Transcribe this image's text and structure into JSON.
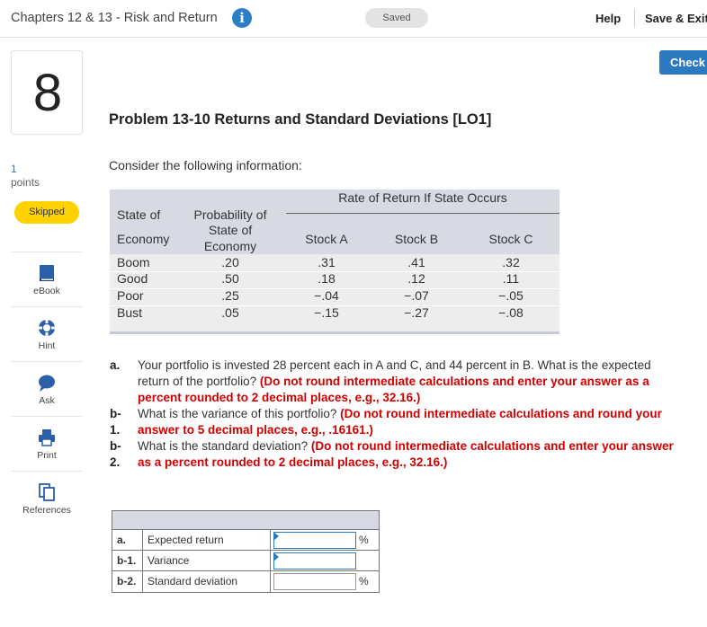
{
  "header": {
    "title": "Chapters 12 & 13 - Risk and Return",
    "info_icon": "i",
    "status": "Saved",
    "help_label": "Help",
    "save_exit_label": "Save & Exit",
    "check_label": "Check"
  },
  "question": {
    "number": "8",
    "points_value": "1",
    "points_label": "points",
    "status_badge": "Skipped"
  },
  "tools": [
    {
      "label": "eBook",
      "icon": "book-icon"
    },
    {
      "label": "Hint",
      "icon": "hint-icon"
    },
    {
      "label": "Ask",
      "icon": "chat-bubble-icon"
    },
    {
      "label": "Print",
      "icon": "printer-icon"
    },
    {
      "label": "References",
      "icon": "copy-icon"
    }
  ],
  "problem": {
    "title": "Problem 13-10 Returns and Standard Deviations [LO1]",
    "intro": "Consider the following information:"
  },
  "data_table": {
    "group_header": "Rate of Return If State Occurs",
    "col_state_line1": "State of",
    "col_state_line2": "Economy",
    "col_prob_line1": "Probability of",
    "col_prob_line2": "State of",
    "col_prob_line3": "Economy",
    "col_a": "Stock A",
    "col_b": "Stock B",
    "col_c": "Stock C",
    "rows": [
      {
        "state": "Boom",
        "prob": ".20",
        "a": ".31",
        "b": ".41",
        "c": ".32"
      },
      {
        "state": "Good",
        "prob": ".50",
        "a": ".18",
        "b": ".12",
        "c": ".11"
      },
      {
        "state": "Poor",
        "prob": ".25",
        "a": "−.04",
        "b": "−.07",
        "c": "−.05"
      },
      {
        "state": "Bust",
        "prob": ".05",
        "a": "−.15",
        "b": "−.27",
        "c": "−.08"
      }
    ]
  },
  "questions": [
    {
      "label": "a.",
      "text": "Your portfolio is invested 28 percent each in A and C, and 44 percent in B. What is the expected return of the portfolio?",
      "instruction": "(Do not round intermediate calculations and enter your answer as a percent rounded to 2 decimal places, e.g., 32.16.)"
    },
    {
      "label": "b-1.",
      "text": "What is the variance of this portfolio?",
      "instruction": "(Do not round intermediate calculations and round your answer to 5 decimal places, e.g., .16161.)"
    },
    {
      "label": "b-2.",
      "text": "What is the standard deviation?",
      "instruction": "(Do not round intermediate calculations and enter your answer as a percent rounded to 2 decimal places, e.g., 32.16.)"
    }
  ],
  "answers": [
    {
      "label": "a.",
      "name": "Expected return",
      "value": "",
      "unit": "%"
    },
    {
      "label": "b-1.",
      "name": "Variance",
      "value": "",
      "unit": ""
    },
    {
      "label": "b-2.",
      "name": "Standard deviation",
      "value": "",
      "unit": "%"
    }
  ]
}
